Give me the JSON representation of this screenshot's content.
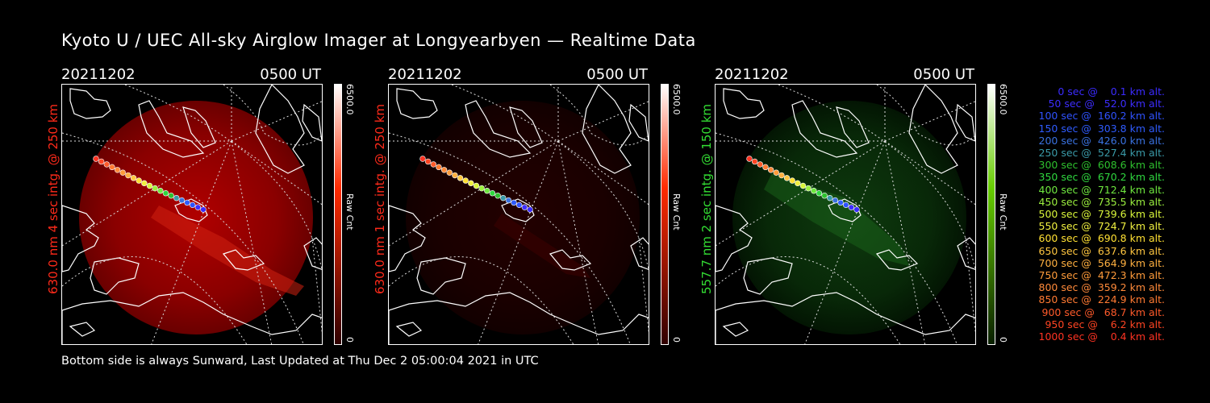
{
  "title": "Kyoto U / UEC All-sky Airglow Imager at Longyearbyen — Realtime Data",
  "footer": "Bottom side is always Sunward, Last Updated at Thu Dec  2 05:00:04 2021 in UTC",
  "panels": [
    {
      "date": "20211202",
      "time": "0500 UT",
      "ylabel": "630.0 nm 4 sec intg. @ 250 km",
      "label_color": "#ff2a1a",
      "cbar_max": "6500.0",
      "cbar_label": "Raw Cnt",
      "cbar_min": "0",
      "cbar_color": "#ff2a00",
      "glow": "red-bright"
    },
    {
      "date": "20211202",
      "time": "0500 UT",
      "ylabel": "630.0 nm 1 sec intg. @ 250 km",
      "label_color": "#ff2a1a",
      "cbar_max": "6500.0",
      "cbar_label": "Raw Cnt",
      "cbar_min": "0",
      "cbar_color": "#ff2a00",
      "glow": "red-dim"
    },
    {
      "date": "20211202",
      "time": "0500 UT",
      "ylabel": "557.7 nm 2 sec intg. @ 150 km",
      "label_color": "#33dd33",
      "cbar_max": "6500.0",
      "cbar_label": "Raw Cnt",
      "cbar_min": "0",
      "cbar_color": "#33cc00",
      "glow": "green"
    }
  ],
  "legend": [
    {
      "text": "   0 sec @    0.1 km alt.",
      "color": "#3b2bff"
    },
    {
      "text": "  50 sec @   52.0 km alt.",
      "color": "#3d2dff"
    },
    {
      "text": " 100 sec @  160.2 km alt.",
      "color": "#2f52ff"
    },
    {
      "text": " 150 sec @  303.8 km alt.",
      "color": "#2f5cff"
    },
    {
      "text": " 200 sec @  426.0 km alt.",
      "color": "#3a72e0"
    },
    {
      "text": " 250 sec @  527.4 km alt.",
      "color": "#3a9aa8"
    },
    {
      "text": " 300 sec @  608.6 km alt.",
      "color": "#2ec02e"
    },
    {
      "text": " 350 sec @  670.2 km alt.",
      "color": "#2fd83f"
    },
    {
      "text": " 400 sec @  712.4 km alt.",
      "color": "#6fe83f"
    },
    {
      "text": " 450 sec @  735.5 km alt.",
      "color": "#9bef3f"
    },
    {
      "text": " 500 sec @  739.6 km alt.",
      "color": "#d8f53a"
    },
    {
      "text": " 550 sec @  724.7 km alt.",
      "color": "#f0f040"
    },
    {
      "text": " 600 sec @  690.8 km alt.",
      "color": "#ffe033"
    },
    {
      "text": " 650 sec @  637.6 km alt.",
      "color": "#ffc640"
    },
    {
      "text": " 700 sec @  564.9 km alt.",
      "color": "#ffb040"
    },
    {
      "text": " 750 sec @  472.3 km alt.",
      "color": "#ff9b3a"
    },
    {
      "text": " 800 sec @  359.2 km alt.",
      "color": "#ff8a3a"
    },
    {
      "text": " 850 sec @  224.9 km alt.",
      "color": "#ff7a32"
    },
    {
      "text": " 900 sec @   68.7 km alt.",
      "color": "#ff5a2a"
    },
    {
      "text": " 950 sec @    6.2 km alt.",
      "color": "#ff4422"
    },
    {
      "text": "1000 sec @    0.4 km alt.",
      "color": "#ff3322"
    }
  ]
}
